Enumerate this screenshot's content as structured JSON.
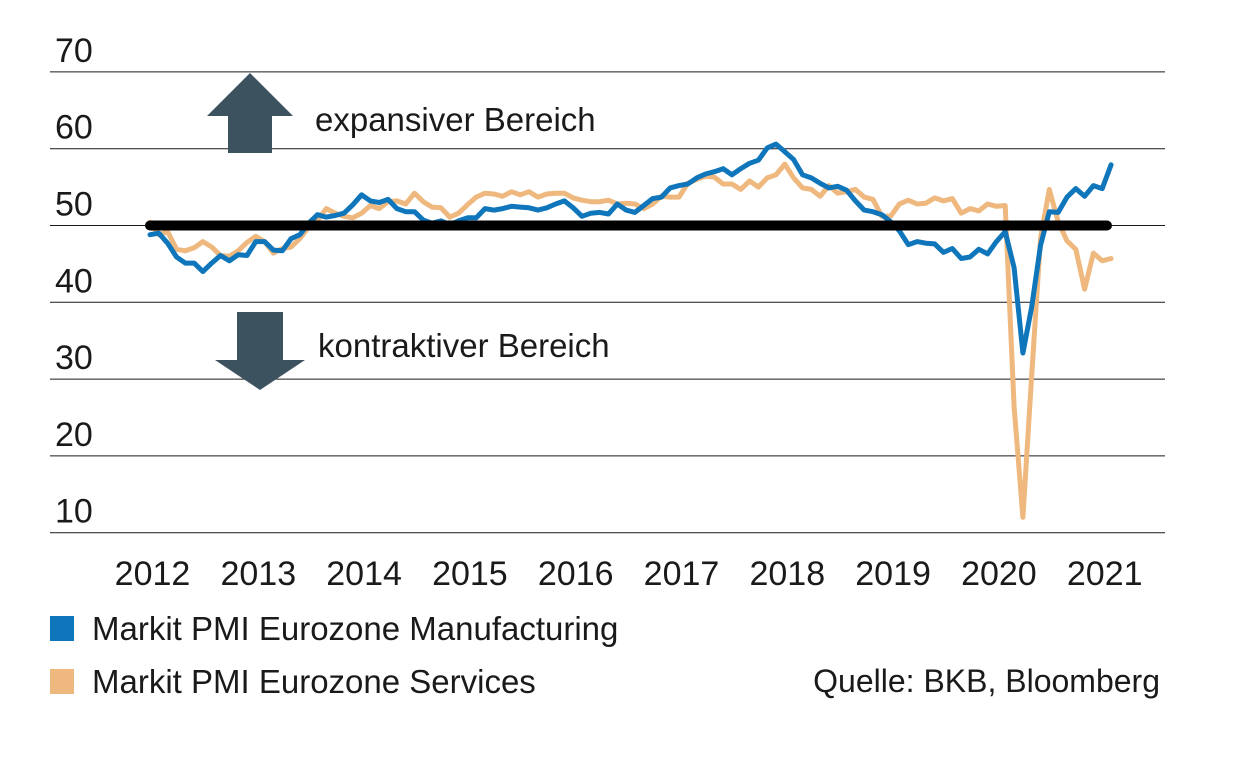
{
  "chart_data": {
    "type": "line",
    "title": "",
    "x_start": "2012-01",
    "x_end": "2021-02",
    "categories": [
      "2012",
      "2013",
      "2014",
      "2015",
      "2016",
      "2017",
      "2018",
      "2019",
      "2020",
      "2021"
    ],
    "ylim": [
      10,
      70
    ],
    "yticks": [
      70,
      60,
      50,
      40,
      30,
      20,
      10
    ],
    "grid": "horizontal",
    "threshold": 50,
    "legend_position": "bottom-left",
    "series": [
      {
        "id": "manufacturing",
        "name": "Markit PMI Eurozone Manufacturing",
        "color": "#0f76bb",
        "values": [
          48.8,
          49.0,
          47.7,
          45.9,
          45.1,
          45.1,
          44.0,
          45.1,
          46.1,
          45.4,
          46.2,
          46.1,
          47.9,
          47.9,
          46.8,
          46.7,
          48.3,
          48.8,
          50.3,
          51.4,
          51.1,
          51.3,
          51.6,
          52.7,
          54.0,
          53.2,
          53.0,
          53.4,
          52.2,
          51.8,
          51.8,
          50.7,
          50.3,
          50.6,
          50.1,
          50.6,
          51.0,
          51.0,
          52.2,
          52.0,
          52.2,
          52.5,
          52.4,
          52.3,
          52.0,
          52.3,
          52.8,
          53.2,
          52.3,
          51.2,
          51.6,
          51.7,
          51.5,
          52.8,
          52.0,
          51.7,
          52.6,
          53.5,
          53.7,
          54.9,
          55.2,
          55.4,
          56.2,
          56.7,
          57.0,
          57.4,
          56.6,
          57.4,
          58.1,
          58.5,
          60.1,
          60.6,
          59.6,
          58.6,
          56.6,
          56.2,
          55.5,
          54.9,
          55.1,
          54.6,
          53.2,
          52.0,
          51.8,
          51.4,
          50.5,
          49.3,
          47.5,
          47.9,
          47.7,
          47.6,
          46.5,
          47.0,
          45.7,
          45.9,
          46.9,
          46.3,
          47.9,
          49.2,
          44.5,
          33.4,
          39.4,
          47.4,
          51.8,
          51.7,
          53.7,
          54.8,
          53.8,
          55.2,
          54.8,
          57.9
        ]
      },
      {
        "id": "services",
        "name": "Markit PMI Eurozone Services",
        "color": "#efb87e",
        "values": [
          50.4,
          48.8,
          49.2,
          46.9,
          46.7,
          47.1,
          47.9,
          47.2,
          46.1,
          46.0,
          46.7,
          47.8,
          48.6,
          47.9,
          46.4,
          47.0,
          47.2,
          48.3,
          49.8,
          50.7,
          52.2,
          51.6,
          51.2,
          51.0,
          51.6,
          52.6,
          52.2,
          53.1,
          53.2,
          52.8,
          54.2,
          53.1,
          52.4,
          52.3,
          51.1,
          51.6,
          52.7,
          53.7,
          54.2,
          54.1,
          53.8,
          54.4,
          54.0,
          54.4,
          53.7,
          54.1,
          54.2,
          54.2,
          53.6,
          53.3,
          53.1,
          53.1,
          53.3,
          52.8,
          52.9,
          52.8,
          52.2,
          52.8,
          53.8,
          53.7,
          53.7,
          55.5,
          56.0,
          56.4,
          56.3,
          55.4,
          55.4,
          54.7,
          55.8,
          55.0,
          56.2,
          56.6,
          58.0,
          56.2,
          54.9,
          54.7,
          53.8,
          55.2,
          54.2,
          54.4,
          54.7,
          53.7,
          53.4,
          51.2,
          51.2,
          52.8,
          53.3,
          52.8,
          52.9,
          53.6,
          53.2,
          53.5,
          51.6,
          52.2,
          51.9,
          52.8,
          52.5,
          52.6,
          26.4,
          12.0,
          30.5,
          48.3,
          54.7,
          50.5,
          48.0,
          46.9,
          41.7,
          46.4,
          45.4,
          45.7
        ]
      }
    ],
    "annotations": [
      {
        "text": "expansiver Bereich",
        "arrow": "up"
      },
      {
        "text": "kontraktiver Bereich",
        "arrow": "down"
      }
    ]
  },
  "legend": {
    "items": [
      {
        "label": "Markit PMI Eurozone Manufacturing",
        "color": "#0f76bb"
      },
      {
        "label": "Markit PMI Eurozone Services",
        "color": "#efb87e"
      }
    ]
  },
  "source": {
    "text": "Quelle: BKB, Bloomberg"
  },
  "colors": {
    "manufacturing": "#0f76bb",
    "services": "#efb87e",
    "threshold": "#000000",
    "arrow": "#3c535f",
    "text": "#1a1a1a",
    "gridline": "#1a1a1a"
  }
}
